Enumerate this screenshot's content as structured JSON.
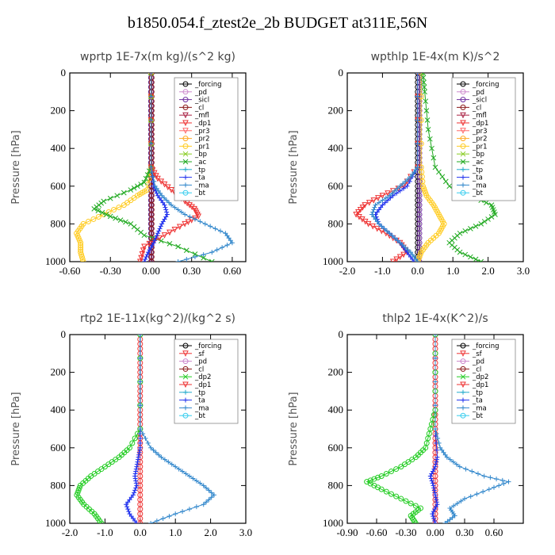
{
  "title": "b1850.054.f_ztest2e_2b  BUDGET at311E,56N",
  "chart_data": [
    {
      "type": "line",
      "title": "wprtp   1E-7x(m kg)/(s^2 kg)",
      "ylabel": "Pressure [hPa]",
      "xlabel": "",
      "xlim": [
        -0.6,
        0.7
      ],
      "ylim": [
        1000,
        0
      ],
      "xticks": [
        -0.6,
        -0.3,
        0.0,
        0.3,
        0.6
      ],
      "xtick_labels": [
        "-0.60",
        "-0.30",
        "0.00",
        "0.30",
        "0.60"
      ],
      "yticks": [
        0,
        200,
        400,
        600,
        800,
        1000
      ],
      "ytick_labels": [
        "0",
        "200",
        "400",
        "600",
        "800",
        "1000"
      ],
      "legend": [
        "_forcing",
        "_pd",
        "_sicl",
        "_cl",
        "_mfl",
        "_dp1",
        "_pr3",
        "_pr2",
        "_pr1",
        "_bp",
        "_ac",
        "_tp",
        "_ta",
        "_ma",
        "_bt"
      ],
      "series": [
        {
          "name": "_forcing",
          "color": "#000000",
          "marker": "o",
          "y": [
            0,
            100,
            200,
            300,
            400,
            500,
            600,
            700,
            800,
            900,
            1000
          ],
          "x": [
            0,
            0,
            0,
            0,
            0,
            0,
            0,
            0,
            0,
            0,
            0
          ]
        },
        {
          "name": "_sicl",
          "color": "#7030a0",
          "marker": "o",
          "y": [
            0,
            100,
            200,
            300,
            400,
            500,
            600,
            700,
            800,
            900,
            1000
          ],
          "x": [
            0,
            0,
            0,
            0,
            0,
            0,
            0,
            0,
            0,
            0,
            0
          ]
        },
        {
          "name": "_cl",
          "color": "#8b1a1a",
          "marker": "o",
          "y": [
            0,
            100,
            200,
            300,
            400,
            500,
            600,
            700,
            800,
            900,
            1000
          ],
          "x": [
            0.005,
            0.005,
            0.005,
            0.005,
            0.005,
            0.005,
            0.005,
            0.005,
            0.005,
            0.005,
            0.005
          ]
        },
        {
          "name": "_pr1",
          "color": "#ffcc22",
          "marker": "o",
          "y": [
            0,
            500,
            620,
            650,
            700,
            750,
            800,
            850,
            900,
            950,
            1000
          ],
          "x": [
            0,
            0,
            -0.03,
            -0.1,
            -0.2,
            -0.35,
            -0.5,
            -0.55,
            -0.52,
            -0.52,
            -0.5
          ]
        },
        {
          "name": "_ac",
          "color": "#22aa22",
          "marker": "x",
          "y": [
            0,
            500,
            580,
            620,
            680,
            720,
            760,
            800,
            860,
            920,
            1000
          ],
          "x": [
            0,
            0,
            -0.05,
            -0.15,
            -0.35,
            -0.42,
            -0.3,
            -0.15,
            -0.05,
            0.2,
            0.45
          ]
        },
        {
          "name": "_dp1",
          "color": "#ee3333",
          "marker": "v",
          "y": [
            0,
            500,
            560,
            620,
            680,
            720,
            760,
            800,
            860,
            920,
            1000
          ],
          "x": [
            0,
            0,
            0.05,
            0.15,
            0.25,
            0.32,
            0.35,
            0.25,
            0.1,
            -0.05,
            -0.08
          ]
        },
        {
          "name": "_ta",
          "color": "#2233ee",
          "marker": "+",
          "y": [
            0,
            500,
            600,
            650,
            700,
            750,
            800,
            850,
            900,
            950,
            1000
          ],
          "x": [
            0,
            0,
            0.02,
            0.05,
            0.1,
            0.12,
            0.08,
            0.05,
            0.02,
            -0.02,
            -0.05
          ]
        },
        {
          "name": "_ma",
          "color": "#3388cc",
          "marker": "+",
          "y": [
            0,
            500,
            600,
            650,
            700,
            750,
            800,
            850,
            900,
            950,
            1000
          ],
          "x": [
            0,
            0,
            0.03,
            0.08,
            0.15,
            0.25,
            0.4,
            0.55,
            0.6,
            0.45,
            0.2
          ]
        }
      ]
    },
    {
      "type": "line",
      "title": "wpthlp   1E-4x(m K)/s^2",
      "ylabel": "Pressure [hPa]",
      "xlabel": "",
      "xlim": [
        -2.0,
        3.0
      ],
      "ylim": [
        1000,
        0
      ],
      "xticks": [
        -2,
        -1,
        0,
        1,
        2,
        3
      ],
      "xtick_labels": [
        "-2.0",
        "-1.0",
        "0.0",
        "1.0",
        "2.0",
        "3.0"
      ],
      "yticks": [
        0,
        200,
        400,
        600,
        800,
        1000
      ],
      "ytick_labels": [
        "0",
        "200",
        "400",
        "600",
        "800",
        "1000"
      ],
      "legend": [
        "_forcing",
        "_pd",
        "_sicl",
        "_cl",
        "_mfl",
        "_dp1",
        "_pr3",
        "_pr2",
        "_pr1",
        "_bp",
        "_ac",
        "_tp",
        "_ta",
        "_ma",
        "_bt"
      ],
      "series": [
        {
          "name": "_forcing",
          "color": "#000000",
          "marker": "o",
          "y": [
            0,
            100,
            200,
            300,
            400,
            500,
            600,
            700,
            800,
            900,
            1000
          ],
          "x": [
            0,
            0,
            0,
            0,
            0,
            0,
            0,
            0,
            0,
            0,
            0
          ]
        },
        {
          "name": "_sicl",
          "color": "#7030a0",
          "marker": "o",
          "y": [
            0,
            100,
            200,
            300,
            400,
            500,
            600,
            700,
            800,
            900,
            1000
          ],
          "x": [
            0.05,
            0.05,
            0.05,
            0.05,
            0.05,
            0.05,
            0.05,
            0.05,
            0.05,
            0.05,
            0.05
          ]
        },
        {
          "name": "_pr1",
          "color": "#ffcc22",
          "marker": "o",
          "y": [
            0,
            500,
            600,
            650,
            700,
            750,
            800,
            850,
            900,
            950,
            1000
          ],
          "x": [
            0.1,
            0.1,
            0.15,
            0.25,
            0.45,
            0.6,
            0.75,
            0.6,
            0.3,
            0.1,
            0
          ]
        },
        {
          "name": "_ac",
          "color": "#22aa22",
          "marker": "x",
          "y": [
            0,
            100,
            300,
            500,
            600,
            650,
            700,
            750,
            800,
            850,
            900,
            950,
            1000
          ],
          "x": [
            0.15,
            0.2,
            0.3,
            0.5,
            0.9,
            1.5,
            2.1,
            2.2,
            1.8,
            1.2,
            0.9,
            1.2,
            1.8
          ]
        },
        {
          "name": "_dp1",
          "color": "#ee3333",
          "marker": "v",
          "y": [
            0,
            500,
            600,
            650,
            700,
            750,
            800,
            850,
            900,
            950,
            1000
          ],
          "x": [
            0,
            0,
            -0.4,
            -1.0,
            -1.5,
            -1.75,
            -1.4,
            -0.9,
            -0.5,
            -0.3,
            -0.7
          ]
        },
        {
          "name": "_ta",
          "color": "#2233ee",
          "marker": "+",
          "y": [
            0,
            500,
            600,
            650,
            700,
            750,
            800,
            850,
            900,
            950,
            1000
          ],
          "x": [
            0,
            0,
            -0.3,
            -0.7,
            -1.0,
            -1.2,
            -1.1,
            -0.8,
            -0.5,
            -0.3,
            -0.1
          ]
        },
        {
          "name": "_ma",
          "color": "#3388cc",
          "marker": "+",
          "y": [
            0,
            500,
            550,
            600,
            650,
            700,
            750,
            800,
            850,
            900,
            950,
            1000
          ],
          "x": [
            0,
            0,
            -0.2,
            -0.5,
            -0.8,
            -1.2,
            -1.3,
            -1.1,
            -0.8,
            -0.5,
            -0.2,
            0
          ]
        }
      ]
    },
    {
      "type": "line",
      "title": "rtp2   1E-11x(kg^2)/(kg^2 s)",
      "ylabel": "Pressure [hPa]",
      "xlabel": "",
      "xlim": [
        -2.0,
        3.0
      ],
      "ylim": [
        1000,
        0
      ],
      "xticks": [
        -2,
        -1,
        0,
        1,
        2,
        3
      ],
      "xtick_labels": [
        "-2.0",
        "-1.0",
        "0.0",
        "1.0",
        "2.0",
        "3.0"
      ],
      "yticks": [
        0,
        200,
        400,
        600,
        800,
        1000
      ],
      "ytick_labels": [
        "0",
        "200",
        "400",
        "600",
        "800",
        "1000"
      ],
      "legend": [
        "_forcing",
        "_sf",
        "_pd",
        "_cl",
        "_dp2",
        "_dp1",
        "_tp",
        "_ta",
        "_ma",
        "_bt"
      ],
      "series": [
        {
          "name": "_forcing",
          "color": "#ee3333",
          "marker": "o",
          "y": [
            0,
            100,
            200,
            300,
            400,
            500,
            600,
            700,
            800,
            900,
            1000
          ],
          "x": [
            0,
            0,
            0,
            0,
            0,
            0,
            0,
            0,
            0,
            0,
            0
          ]
        },
        {
          "name": "_dp2",
          "color": "#22cc22",
          "marker": "o",
          "y": [
            0,
            500,
            600,
            650,
            700,
            750,
            800,
            850,
            900,
            950,
            1000
          ],
          "x": [
            0,
            0,
            -0.3,
            -0.6,
            -1.0,
            -1.4,
            -1.7,
            -1.8,
            -1.6,
            -1.3,
            -1.1
          ]
        },
        {
          "name": "_ta",
          "color": "#2233ee",
          "marker": "+",
          "y": [
            0,
            500,
            600,
            650,
            700,
            750,
            800,
            850,
            900,
            950,
            1000
          ],
          "x": [
            0,
            0,
            0,
            -0.05,
            -0.1,
            -0.15,
            -0.1,
            -0.2,
            -0.4,
            -0.3,
            -0.1
          ]
        },
        {
          "name": "_ma",
          "color": "#3388cc",
          "marker": "+",
          "y": [
            0,
            500,
            600,
            650,
            700,
            750,
            800,
            850,
            900,
            950,
            1000
          ],
          "x": [
            0,
            0,
            0.3,
            0.6,
            1.0,
            1.4,
            1.8,
            2.1,
            1.8,
            1.0,
            0.3
          ]
        }
      ]
    },
    {
      "type": "line",
      "title": "thlp2   1E-4x(K^2)/s",
      "ylabel": "Pressure [hPa]",
      "xlabel": "",
      "xlim": [
        -0.9,
        0.9
      ],
      "ylim": [
        1000,
        0
      ],
      "xticks": [
        -0.9,
        -0.6,
        -0.3,
        0.0,
        0.3,
        0.6
      ],
      "xtick_labels": [
        "-0.90",
        "-0.60",
        "-0.30",
        "0.00",
        "0.30",
        "0.60"
      ],
      "yticks": [
        0,
        200,
        400,
        600,
        800,
        1000
      ],
      "ytick_labels": [
        "0",
        "200",
        "400",
        "600",
        "800",
        "1000"
      ],
      "legend": [
        "_forcing",
        "_sf",
        "_pd",
        "_cl",
        "_dp2",
        "_dp1",
        "_tp",
        "_ta",
        "_ma",
        "_bt"
      ],
      "series": [
        {
          "name": "_forcing",
          "color": "#ee3333",
          "marker": "o",
          "y": [
            0,
            100,
            200,
            300,
            400,
            500,
            600,
            700,
            800,
            900,
            1000
          ],
          "x": [
            0,
            0,
            0,
            0,
            0,
            0,
            0,
            0,
            0,
            0,
            0
          ]
        },
        {
          "name": "_dp2",
          "color": "#22cc22",
          "marker": "o",
          "y": [
            0,
            400,
            500,
            600,
            650,
            700,
            750,
            780,
            820,
            870,
            920,
            960,
            1000
          ],
          "x": [
            0,
            0,
            -0.05,
            -0.1,
            -0.2,
            -0.35,
            -0.55,
            -0.7,
            -0.55,
            -0.35,
            -0.15,
            -0.25,
            -0.2
          ]
        },
        {
          "name": "_ta",
          "color": "#2233ee",
          "marker": "+",
          "y": [
            0,
            500,
            650,
            700,
            750,
            800,
            850,
            900,
            950,
            1000
          ],
          "x": [
            0,
            0,
            0.02,
            0,
            -0.05,
            -0.02,
            0,
            0.02,
            -0.03,
            0
          ]
        },
        {
          "name": "_ma",
          "color": "#3388cc",
          "marker": "+",
          "y": [
            0,
            500,
            600,
            650,
            700,
            750,
            780,
            820,
            870,
            920,
            960,
            1000
          ],
          "x": [
            0,
            0,
            0.05,
            0.12,
            0.25,
            0.5,
            0.75,
            0.55,
            0.3,
            0.15,
            0.2,
            0.1
          ]
        }
      ]
    }
  ]
}
